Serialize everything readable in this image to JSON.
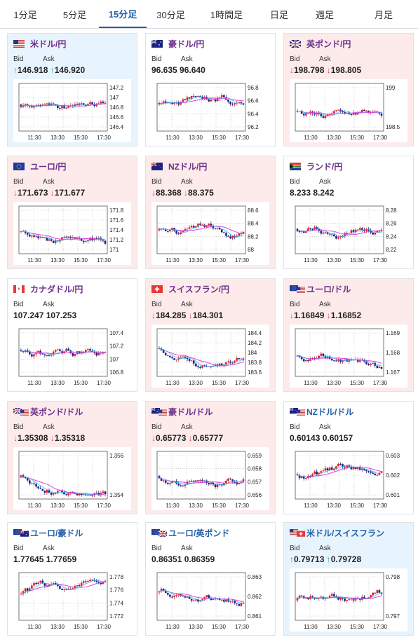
{
  "tabs": [
    {
      "label": "1分足",
      "active": false
    },
    {
      "label": "5分足",
      "active": false
    },
    {
      "label": "15分足",
      "active": true
    },
    {
      "label": "30分足",
      "active": false
    },
    {
      "label": "1時間足",
      "active": false
    },
    {
      "label": "日足",
      "active": false
    },
    {
      "label": "週足",
      "active": false
    },
    {
      "label": "月足",
      "active": false
    }
  ],
  "labels": {
    "bid": "Bid",
    "ask": "Ask"
  },
  "colors": {
    "up_bg": "#e8f4fd",
    "down_bg": "#fcebea",
    "up": "#2a9d8f",
    "down": "#d9534f",
    "candle_up": "#e31b23",
    "candle_down": "#1a237e",
    "ma": "#e040e0",
    "ma2": "#29b6f6"
  },
  "x_ticks": [
    "11:30",
    "13:30",
    "15:30",
    "17:30"
  ],
  "cards": [
    {
      "pair": "米ドル/円",
      "flag": "us",
      "dir": "up",
      "bid": "146.918",
      "ask": "146.920",
      "ticks": [
        "147.2",
        "147",
        "146.8",
        "146.6",
        "146.4"
      ]
    },
    {
      "pair": "豪ドル/円",
      "flag": "au",
      "dir": "flat",
      "bid": "96.635",
      "ask": "96.640",
      "ticks": [
        "96.8",
        "96.6",
        "96.4",
        "96.2"
      ]
    },
    {
      "pair": "英ポンド/円",
      "flag": "gb",
      "dir": "down",
      "bid": "198.798",
      "ask": "198.805",
      "ticks": [
        "199",
        "198.5"
      ]
    },
    {
      "pair": "ユーロ/円",
      "flag": "eu",
      "dir": "down",
      "bid": "171.673",
      "ask": "171.677",
      "ticks": [
        "171.8",
        "171.6",
        "171.4",
        "171.2",
        "171"
      ]
    },
    {
      "pair": "NZドル/円",
      "flag": "nz",
      "dir": "down",
      "bid": "88.368",
      "ask": "88.375",
      "ticks": [
        "88.6",
        "88.4",
        "88.2",
        "88"
      ]
    },
    {
      "pair": "ランド/円",
      "flag": "za",
      "dir": "flat",
      "bid": "8.233",
      "ask": "8.242",
      "ticks": [
        "8.28",
        "8.26",
        "8.24",
        "8.22"
      ]
    },
    {
      "pair": "カナダドル/円",
      "flag": "ca",
      "dir": "flat",
      "bid": "107.247",
      "ask": "107.253",
      "ticks": [
        "107.4",
        "107.2",
        "107",
        "106.8"
      ]
    },
    {
      "pair": "スイスフラン/円",
      "flag": "ch",
      "dir": "down",
      "bid": "184.285",
      "ask": "184.301",
      "ticks": [
        "184.4",
        "184.2",
        "184",
        "183.8",
        "183.6"
      ]
    },
    {
      "pair": "ユーロ/ドル",
      "flag": "euus",
      "dir": "down",
      "bid": "1.16849",
      "ask": "1.16852",
      "ticks": [
        "1.169",
        "1.168",
        "1.167"
      ]
    },
    {
      "pair": "英ポンド/ドル",
      "flag": "gbus",
      "dir": "down",
      "bid": "1.35308",
      "ask": "1.35318",
      "ticks": [
        "1.356",
        "1.354"
      ]
    },
    {
      "pair": "豪ドル/ドル",
      "flag": "auus",
      "dir": "down",
      "bid": "0.65773",
      "ask": "0.65777",
      "ticks": [
        "0.659",
        "0.658",
        "0.657",
        "0.656"
      ]
    },
    {
      "pair": "NZドル/ドル",
      "flag": "nzus",
      "dir": "flat",
      "bid": "0.60143",
      "ask": "0.60157",
      "ticks": [
        "0.603",
        "0.602",
        "0.601"
      ]
    },
    {
      "pair": "ユーロ/豪ドル",
      "flag": "euau",
      "dir": "flat",
      "bid": "1.77645",
      "ask": "1.77659",
      "ticks": [
        "1.778",
        "1.776",
        "1.774",
        "1.772"
      ]
    },
    {
      "pair": "ユーロ/英ポンド",
      "flag": "eugb",
      "dir": "flat",
      "bid": "0.86351",
      "ask": "0.86359",
      "ticks": [
        "0.863",
        "0.862",
        "0.861"
      ]
    },
    {
      "pair": "米ドル/スイスフラン",
      "flag": "usch",
      "dir": "up",
      "bid": "0.79713",
      "ask": "0.79728",
      "ticks": [
        "0.798",
        "0.797"
      ]
    }
  ]
}
